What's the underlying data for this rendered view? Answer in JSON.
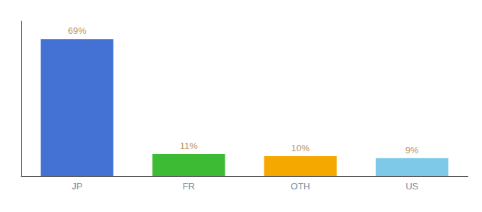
{
  "chart_data": {
    "type": "bar",
    "categories": [
      "JP",
      "FR",
      "OTH",
      "US"
    ],
    "values": [
      69,
      11,
      10,
      9
    ],
    "value_labels": [
      "69%",
      "11%",
      "10%",
      "9%"
    ],
    "colors": [
      "#4472d4",
      "#3dbb35",
      "#f5a800",
      "#7ec8e8"
    ],
    "ylim": [
      0,
      78
    ],
    "grid": false,
    "data_labels": true,
    "tick_labels": "x"
  }
}
